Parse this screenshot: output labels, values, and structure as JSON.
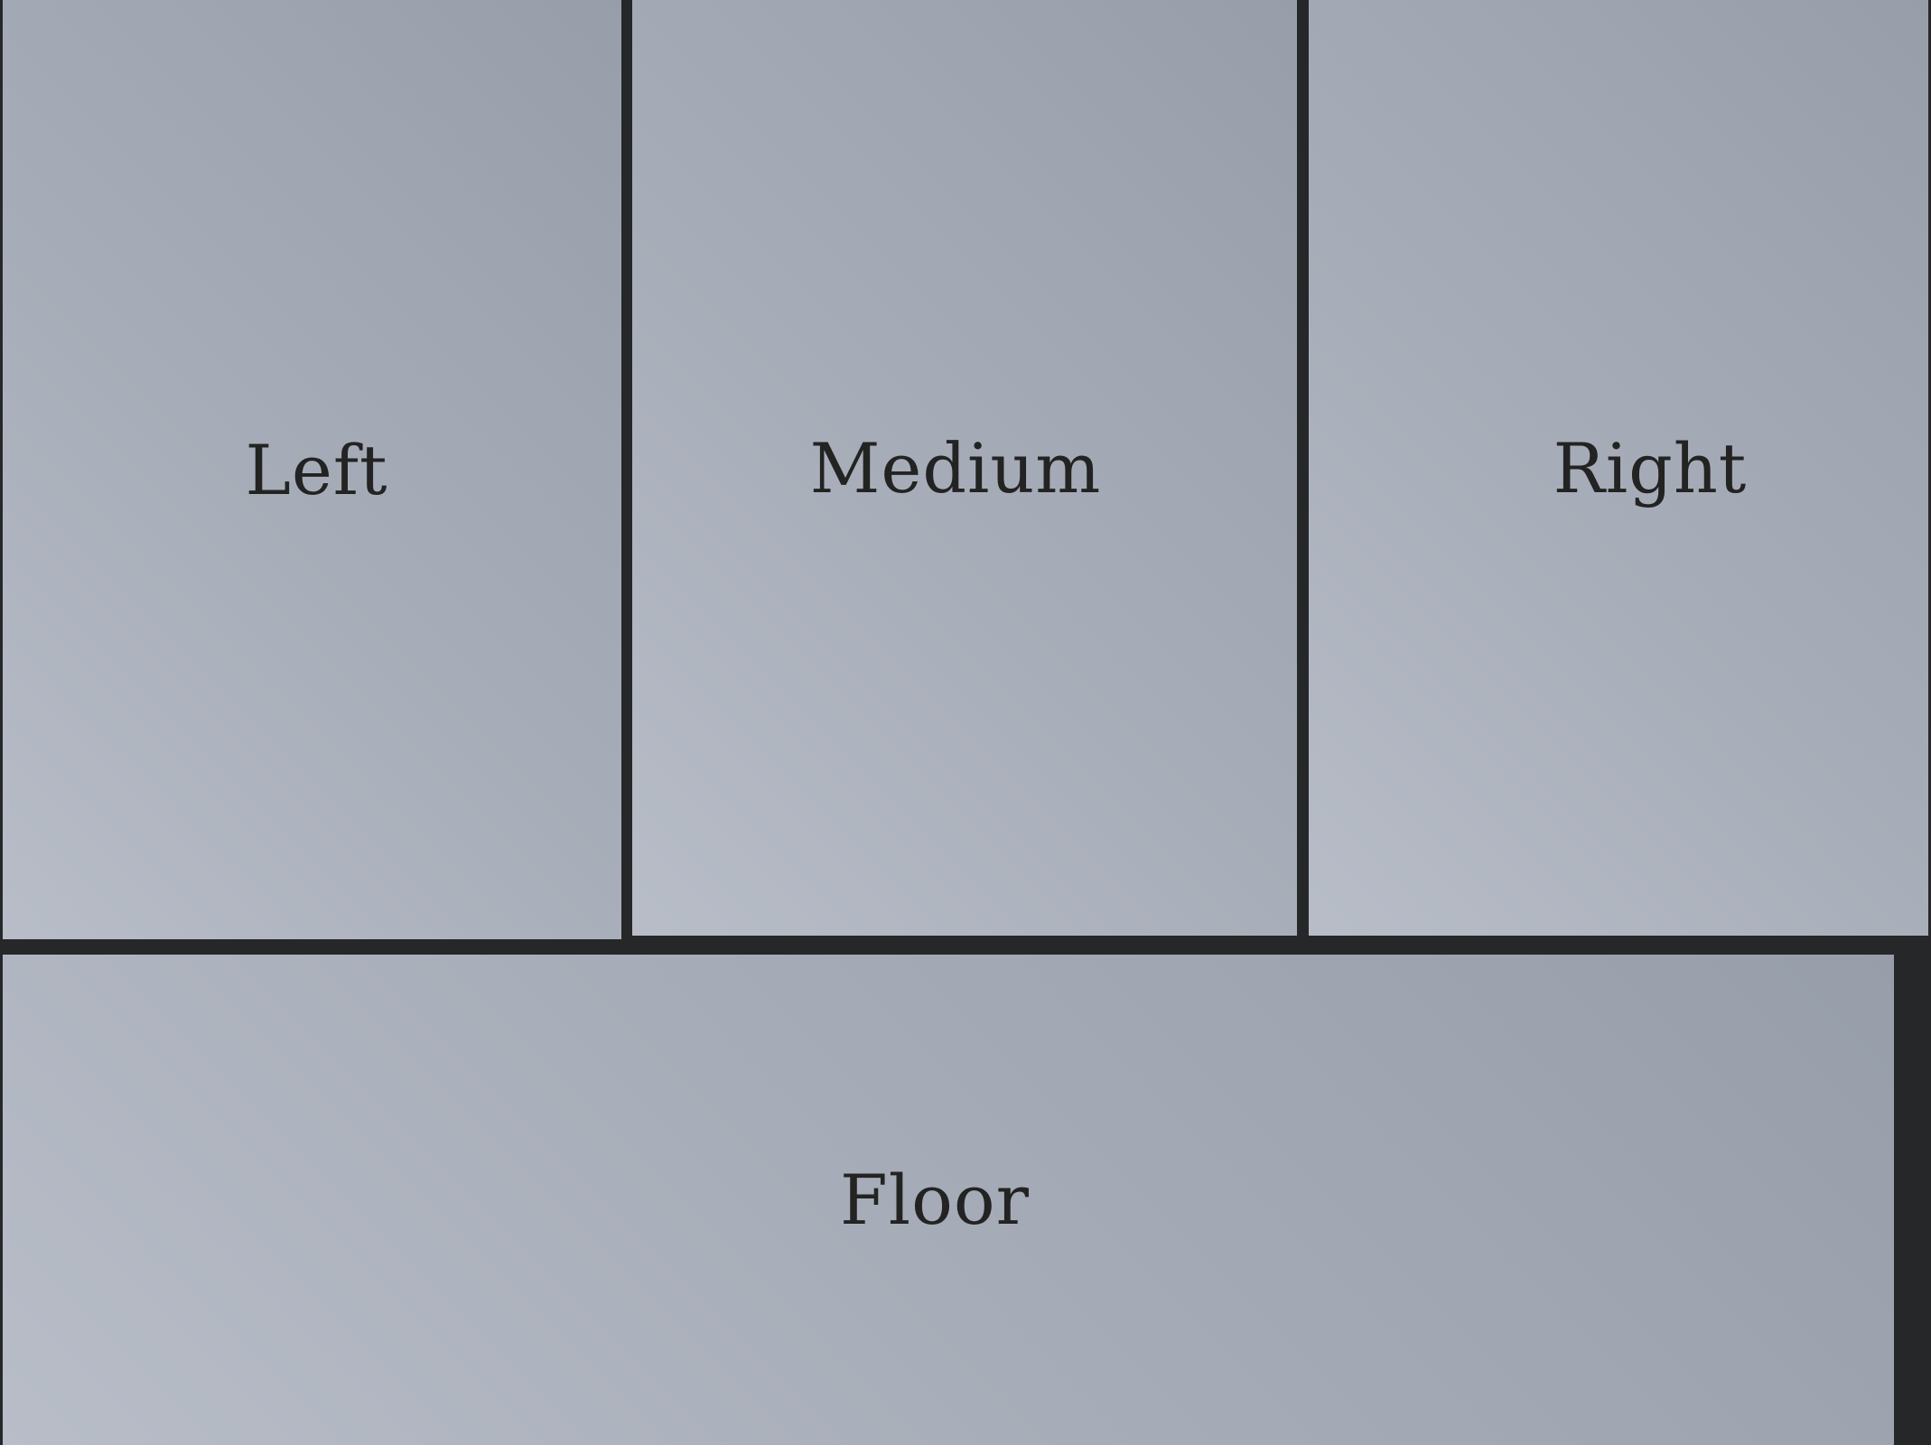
{
  "regions": {
    "left": {
      "label": "Left"
    },
    "medium": {
      "label": "Medium"
    },
    "right": {
      "label": "Right"
    },
    "floor": {
      "label": "Floor"
    }
  },
  "colors": {
    "divider": "#262729",
    "panel_light": "#b8bdc8",
    "panel_dark": "#979eaa",
    "text": "#232323"
  }
}
